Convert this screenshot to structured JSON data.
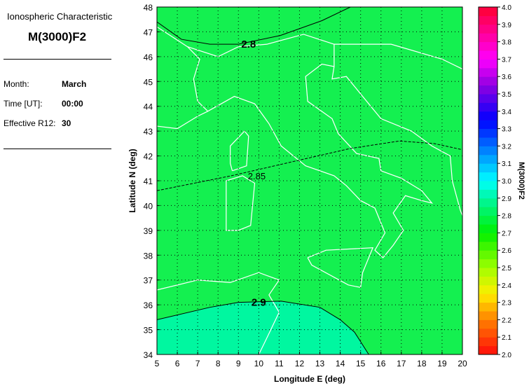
{
  "panel": {
    "heading": "Ionospheric Characteristic",
    "characteristic": "M(3000)F2",
    "month_label": "Month:",
    "month_value": "March",
    "time_label": "Time [UT]:",
    "time_value": "00:00",
    "r12_label": "Effective R12:",
    "r12_value": "30"
  },
  "chart_data": {
    "type": "heatmap",
    "title": "",
    "xlabel": "Longitude E (deg)",
    "ylabel": "Latitude N (deg)",
    "xlim": [
      5,
      20
    ],
    "ylim": [
      34,
      48
    ],
    "xticks": [
      "5",
      "6",
      "7",
      "8",
      "9",
      "10",
      "11",
      "12",
      "13",
      "14",
      "15",
      "16",
      "17",
      "18",
      "19",
      "20"
    ],
    "yticks": [
      "34",
      "35",
      "36",
      "37",
      "38",
      "39",
      "40",
      "41",
      "42",
      "43",
      "44",
      "45",
      "46",
      "47",
      "48"
    ],
    "grid": true,
    "fill_colors": {
      "below_2.9": "#14f050",
      "above_2.9": "#00f7a0"
    },
    "contours": [
      {
        "level": "2.8",
        "style": "solid",
        "label_at": [
          9.5,
          46.5
        ],
        "points": [
          [
            5,
            47.4
          ],
          [
            6.2,
            46.7
          ],
          [
            7.6,
            46.5
          ],
          [
            9,
            46.5
          ],
          [
            11.05,
            46.85
          ],
          [
            13.1,
            47.45
          ],
          [
            14.5,
            48
          ]
        ]
      },
      {
        "level": "2.85",
        "style": "dashed",
        "label_at": [
          9.9,
          41.2
        ],
        "points": [
          [
            5,
            40.6
          ],
          [
            8.65,
            41.2
          ],
          [
            12.1,
            41.85
          ],
          [
            14.5,
            42.3
          ],
          [
            16.9,
            42.6
          ],
          [
            18.6,
            42.5
          ],
          [
            20,
            42.25
          ]
        ]
      },
      {
        "level": "2.9",
        "style": "solid",
        "label_at": [
          10.0,
          36.1
        ],
        "points": [
          [
            5,
            35.4
          ],
          [
            7.6,
            35.9
          ],
          [
            9,
            36.1
          ],
          [
            11.1,
            36.15
          ],
          [
            13,
            35.9
          ],
          [
            14,
            35.4
          ],
          [
            14.7,
            34.9
          ],
          [
            15.4,
            34
          ]
        ]
      }
    ],
    "colorbar": {
      "label": "M(3000)F2",
      "range": [
        2.0,
        4.0
      ],
      "ticks": [
        "2.0",
        "2.1",
        "2.2",
        "2.3",
        "2.4",
        "2.5",
        "2.6",
        "2.7",
        "2.8",
        "2.9",
        "3.0",
        "3.1",
        "3.2",
        "3.3",
        "3.4",
        "3.5",
        "3.6",
        "3.7",
        "3.8",
        "3.9",
        "4.0"
      ],
      "stops": [
        [
          2.0,
          "#ff0a0a"
        ],
        [
          2.2,
          "#ff8000"
        ],
        [
          2.35,
          "#ffee00"
        ],
        [
          2.5,
          "#a0ff00"
        ],
        [
          2.7,
          "#00f000"
        ],
        [
          2.9,
          "#00f7a0"
        ],
        [
          3.0,
          "#00ffff"
        ],
        [
          3.2,
          "#0070ff"
        ],
        [
          3.35,
          "#0000ff"
        ],
        [
          3.55,
          "#9000e0"
        ],
        [
          3.7,
          "#ff00ff"
        ],
        [
          4.0,
          "#ff0030"
        ]
      ]
    }
  }
}
